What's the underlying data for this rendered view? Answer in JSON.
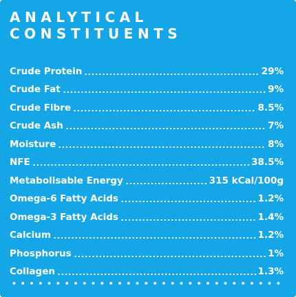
{
  "title_line1": "ANALYTICAL",
  "title_line2": "CONSTITUENTS",
  "colors": {
    "background": "#14a6e6",
    "text": "#ffffff"
  },
  "constituents": [
    {
      "name": "Crude Protein",
      "value": "29%"
    },
    {
      "name": "Crude Fat",
      "value": "9%"
    },
    {
      "name": "Crude Fibre",
      "value": "8.5%"
    },
    {
      "name": "Crude Ash",
      "value": "7%"
    },
    {
      "name": "Moisture",
      "value": "8%"
    },
    {
      "name": "NFE",
      "value": "38.5%"
    },
    {
      "name": "Metabolisable Energy",
      "value": "315 kCal/100g"
    },
    {
      "name": "Omega-6 Fatty Acids",
      "value": "1.2%"
    },
    {
      "name": "Omega-3 Fatty Acids",
      "value": "1.4%"
    },
    {
      "name": "Calcium",
      "value": "1.2%"
    },
    {
      "name": "Phosphorus",
      "value": "1%"
    },
    {
      "name": "Collagen",
      "value": "1.3%"
    }
  ]
}
